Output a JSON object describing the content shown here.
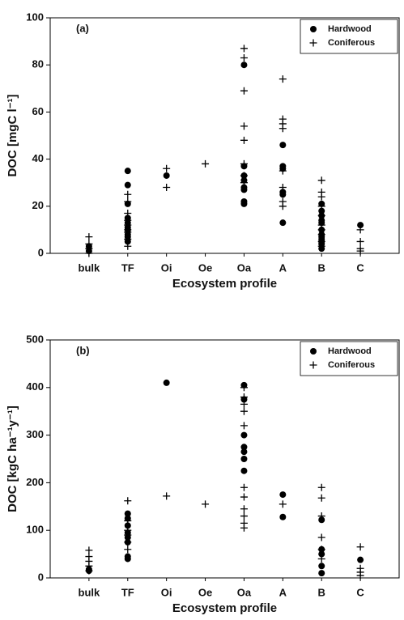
{
  "chart_data": [
    {
      "type": "scatter",
      "annotation": "(a)",
      "x_label": "Ecosystem profile",
      "y_label": "DOC [mgC l⁻¹]",
      "categories": [
        "bulk",
        "TF",
        "Oi",
        "Oe",
        "Oa",
        "A",
        "B",
        "C"
      ],
      "ylim": [
        0,
        100
      ],
      "yticks": [
        0,
        20,
        40,
        60,
        80,
        100
      ],
      "legend": "upper right",
      "series": [
        {
          "name": "Hardwood",
          "marker": "circle",
          "color": "#000000",
          "x": [
            "bulk",
            "bulk",
            "TF",
            "TF",
            "TF",
            "TF",
            "TF",
            "TF",
            "TF",
            "TF",
            "TF",
            "TF",
            "Oi",
            "Oa",
            "Oa",
            "Oa",
            "Oa",
            "Oa",
            "Oa",
            "Oa",
            "Oa",
            "A",
            "A",
            "A",
            "A",
            "A",
            "A",
            "B",
            "B",
            "B",
            "B",
            "B",
            "B",
            "B",
            "B",
            "B",
            "B",
            "B",
            "B",
            "C"
          ],
          "values": [
            3,
            1,
            35,
            29,
            21,
            15,
            13,
            11,
            10,
            8,
            7,
            5,
            33,
            80,
            37,
            33,
            31,
            28,
            27,
            22,
            21,
            46,
            37,
            36,
            26,
            25,
            13,
            21,
            18,
            16,
            14,
            13,
            10,
            8,
            7,
            6,
            5,
            4,
            2,
            12
          ]
        },
        {
          "name": "Coniferous",
          "marker": "plus",
          "color": "#000000",
          "x": [
            "bulk",
            "bulk",
            "bulk",
            "bulk",
            "TF",
            "TF",
            "TF",
            "TF",
            "TF",
            "TF",
            "TF",
            "TF",
            "TF",
            "Oi",
            "Oi",
            "Oe",
            "Oa",
            "Oa",
            "Oa",
            "Oa",
            "Oa",
            "Oa",
            "Oa",
            "Oa",
            "A",
            "A",
            "A",
            "A",
            "A",
            "A",
            "A",
            "A",
            "B",
            "B",
            "B",
            "B",
            "B",
            "B",
            "B",
            "B",
            "B",
            "B",
            "C",
            "C",
            "C",
            "C"
          ],
          "values": [
            7,
            4,
            2,
            0,
            25,
            22,
            17,
            14,
            12,
            10,
            9,
            6,
            3,
            36,
            28,
            38,
            87,
            83,
            69,
            54,
            48,
            38,
            33,
            30,
            74,
            57,
            55,
            53,
            35,
            28,
            22,
            20,
            31,
            26,
            24,
            20,
            16,
            12,
            10,
            8,
            5,
            3,
            10,
            5,
            2,
            1
          ]
        }
      ]
    },
    {
      "type": "scatter",
      "annotation": "(b)",
      "x_label": "Ecosystem profile",
      "y_label": "DOC [kgC ha⁻¹y⁻¹]",
      "categories": [
        "bulk",
        "TF",
        "Oi",
        "Oe",
        "Oa",
        "A",
        "B",
        "C"
      ],
      "ylim": [
        0,
        500
      ],
      "yticks": [
        0,
        100,
        200,
        300,
        400,
        500
      ],
      "legend": "upper right",
      "series": [
        {
          "name": "Hardwood",
          "marker": "circle",
          "color": "#000000",
          "x": [
            "bulk",
            "bulk",
            "TF",
            "TF",
            "TF",
            "TF",
            "TF",
            "TF",
            "TF",
            "TF",
            "Oi",
            "Oa",
            "Oa",
            "Oa",
            "Oa",
            "Oa",
            "Oa",
            "Oa",
            "A",
            "A",
            "B",
            "B",
            "B",
            "B",
            "B",
            "C"
          ],
          "values": [
            15,
            18,
            135,
            125,
            110,
            95,
            85,
            75,
            45,
            40,
            410,
            405,
            375,
            300,
            275,
            265,
            250,
            225,
            175,
            128,
            122,
            60,
            50,
            25,
            10,
            38
          ]
        },
        {
          "name": "Coniferous",
          "marker": "plus",
          "color": "#000000",
          "x": [
            "bulk",
            "bulk",
            "bulk",
            "bulk",
            "bulk",
            "TF",
            "TF",
            "TF",
            "TF",
            "TF",
            "TF",
            "Oi",
            "Oe",
            "Oa",
            "Oa",
            "Oa",
            "Oa",
            "Oa",
            "Oa",
            "Oa",
            "Oa",
            "Oa",
            "Oa",
            "Oa",
            "A",
            "B",
            "B",
            "B",
            "B",
            "B",
            "B",
            "C",
            "C",
            "C",
            "C"
          ],
          "values": [
            58,
            45,
            35,
            25,
            15,
            162,
            120,
            100,
            90,
            75,
            60,
            172,
            155,
            400,
            380,
            365,
            350,
            320,
            190,
            170,
            145,
            130,
            115,
            105,
            155,
            190,
            168,
            130,
            85,
            60,
            40,
            65,
            20,
            12,
            5
          ]
        }
      ]
    }
  ]
}
